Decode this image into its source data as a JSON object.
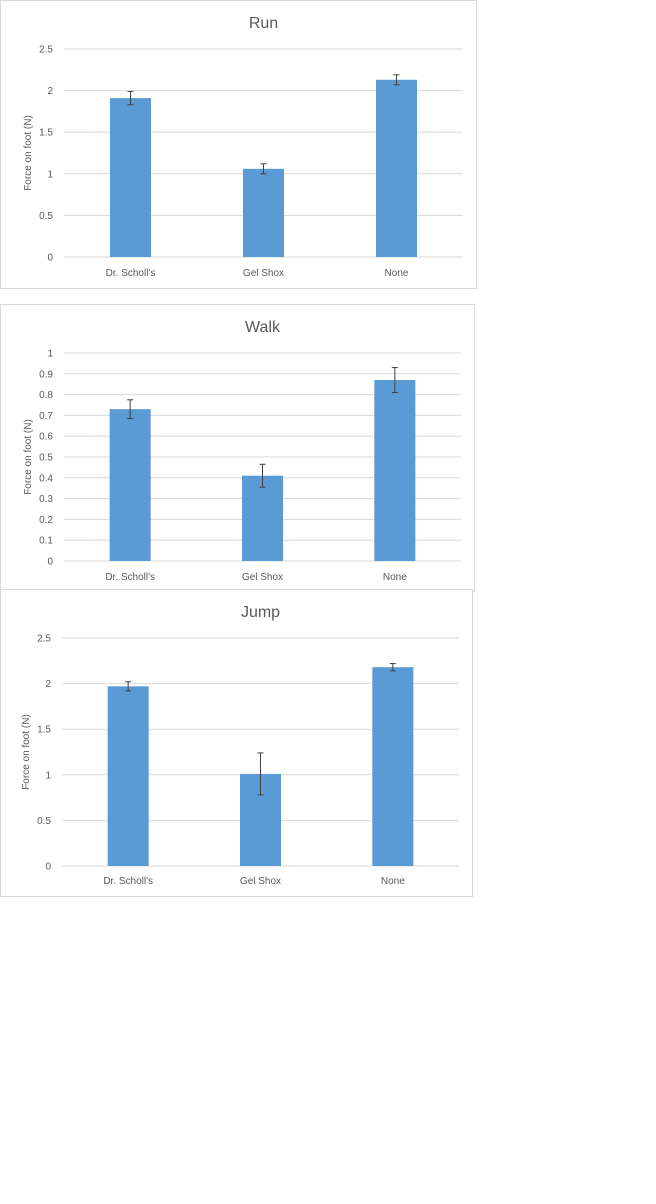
{
  "chart_data": [
    {
      "type": "bar",
      "title": "Run",
      "ylabel": "Force on foot (N)",
      "xlabel": "",
      "categories": [
        "Dr. Scholl's",
        "Gel Shox",
        "None"
      ],
      "values": [
        1.91,
        1.06,
        2.13
      ],
      "error": [
        0.08,
        0.06,
        0.06
      ],
      "ylim": [
        0,
        2.5
      ],
      "yticks": [
        "0",
        "0.5",
        "1",
        "1.5",
        "2",
        "2.5"
      ],
      "grid": true,
      "color": "#5b9bd5"
    },
    {
      "type": "bar",
      "title": "Walk",
      "ylabel": "Force on foot (N)",
      "xlabel": "",
      "categories": [
        "Dr. Scholl's",
        "Gel Shox",
        "None"
      ],
      "values": [
        0.73,
        0.41,
        0.87
      ],
      "error": [
        0.045,
        0.055,
        0.06
      ],
      "ylim": [
        0,
        1
      ],
      "yticks": [
        "0",
        "0.1",
        "0.2",
        "0.3",
        "0.4",
        "0.5",
        "0.6",
        "0.7",
        "0.8",
        "0.9",
        "1"
      ],
      "grid": true,
      "color": "#5b9bd5"
    },
    {
      "type": "bar",
      "title": "Jump",
      "ylabel": "Force on foot (N)",
      "xlabel": "",
      "categories": [
        "Dr. Scholl's",
        "Gel Shox",
        "None"
      ],
      "values": [
        1.97,
        1.01,
        2.18
      ],
      "error": [
        0.05,
        0.23,
        0.04
      ],
      "ylim": [
        0,
        2.5
      ],
      "yticks": [
        "0",
        "0.5",
        "1",
        "1.5",
        "2",
        "2.5"
      ],
      "grid": true,
      "color": "#5b9bd5"
    }
  ]
}
